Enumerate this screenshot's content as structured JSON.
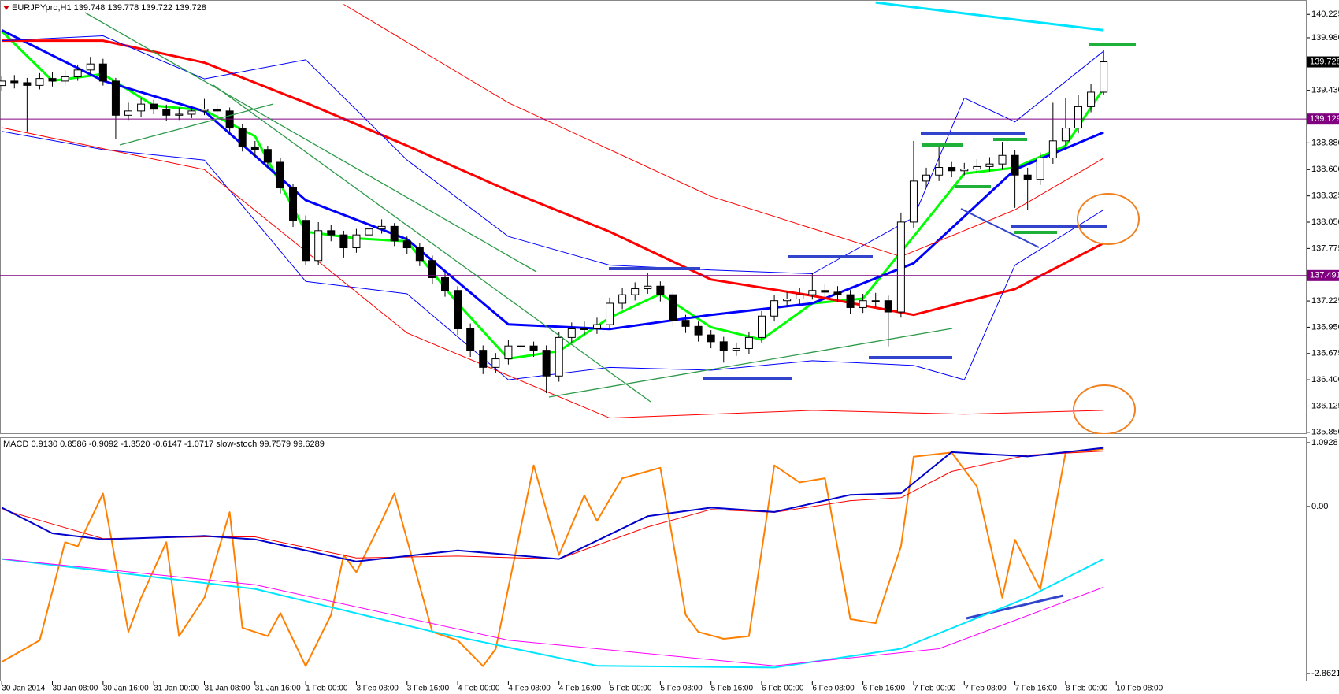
{
  "chart_data": [
    {
      "type": "candlestick",
      "title": "EURJPYpro,H1  139.748 139.778 139.722 139.728",
      "time_labels": [
        "30 Jan 2014",
        "30 Jan 08:00",
        "30 Jan 16:00",
        "31 Jan 00:00",
        "31 Jan 08:00",
        "31 Jan 16:00",
        "1 Feb 00:00",
        "3 Feb 08:00",
        "3 Feb 16:00",
        "4 Feb 00:00",
        "4 Feb 08:00",
        "4 Feb 16:00",
        "5 Feb 00:00",
        "5 Feb 08:00",
        "5 Feb 16:00",
        "6 Feb 00:00",
        "6 Feb 08:00",
        "6 Feb 16:00",
        "7 Feb 00:00",
        "7 Feb 08:00",
        "7 Feb 16:00",
        "8 Feb 00:00",
        "10 Feb 08:00"
      ],
      "open": [
        139.48,
        139.527,
        139.51,
        139.482,
        139.554,
        139.527,
        139.572,
        139.643,
        139.706,
        139.527,
        139.169,
        139.214,
        139.286,
        139.232,
        139.169,
        139.18,
        139.214,
        139.232,
        139.214,
        139.035,
        138.838,
        138.811,
        138.677,
        138.409,
        138.069,
        137.648,
        137.961,
        137.917,
        137.782,
        137.917,
        137.979,
        138.006,
        137.854,
        137.782,
        137.648,
        137.469,
        137.335,
        136.933,
        136.709,
        136.53,
        136.619,
        136.754,
        136.754,
        136.709,
        136.44,
        136.843,
        136.933,
        136.933,
        136.977,
        137.201,
        137.29,
        137.353,
        137.38,
        137.29,
        137.022,
        136.959,
        136.87,
        136.798,
        136.709,
        136.727,
        136.843,
        137.067,
        137.228,
        137.246,
        137.29,
        137.335,
        137.317,
        137.29,
        137.156,
        137.228,
        137.228,
        137.11,
        138.051,
        138.48,
        138.543,
        138.623,
        138.588,
        138.606,
        138.632,
        138.659,
        138.749,
        138.543,
        138.498,
        138.722,
        138.901,
        139.035,
        139.259,
        139.411
      ],
      "high": [
        139.58,
        139.59,
        139.56,
        139.61,
        139.62,
        139.64,
        139.7,
        139.78,
        139.76,
        139.56,
        139.3,
        139.35,
        139.33,
        139.28,
        139.25,
        139.27,
        139.34,
        139.29,
        139.25,
        139.08,
        138.9,
        138.85,
        138.72,
        138.45,
        138.12,
        138.05,
        138.02,
        137.96,
        137.98,
        138.05,
        138.08,
        138.04,
        137.9,
        137.83,
        137.7,
        137.52,
        137.38,
        136.99,
        136.76,
        136.68,
        136.82,
        136.83,
        136.8,
        136.76,
        136.9,
        137.0,
        137.01,
        137.05,
        137.26,
        137.36,
        137.42,
        137.52,
        137.43,
        137.33,
        137.08,
        137.01,
        136.92,
        136.85,
        136.79,
        136.9,
        137.12,
        137.29,
        137.32,
        137.36,
        137.52,
        137.4,
        137.38,
        137.34,
        137.3,
        137.31,
        137.28,
        138.15,
        138.9,
        138.62,
        138.87,
        138.68,
        138.67,
        138.71,
        138.73,
        138.89,
        138.8,
        138.62,
        138.78,
        139.3,
        139.35,
        139.38,
        139.5,
        139.85
      ],
      "low": [
        139.42,
        139.45,
        139.0,
        139.44,
        139.47,
        139.48,
        139.53,
        139.6,
        139.48,
        138.92,
        139.12,
        139.15,
        139.18,
        139.11,
        139.12,
        139.14,
        139.17,
        139.15,
        138.98,
        138.79,
        138.74,
        138.62,
        138.35,
        138.0,
        137.6,
        137.6,
        137.85,
        137.68,
        137.73,
        137.88,
        137.93,
        137.8,
        137.72,
        137.59,
        137.4,
        137.27,
        136.87,
        136.64,
        136.46,
        136.47,
        136.56,
        136.69,
        136.64,
        136.26,
        136.38,
        136.78,
        136.87,
        136.88,
        136.92,
        137.14,
        137.23,
        137.3,
        137.22,
        136.96,
        136.89,
        136.8,
        136.73,
        136.58,
        136.65,
        136.67,
        136.79,
        137.01,
        137.17,
        137.19,
        137.24,
        137.25,
        137.22,
        137.09,
        137.1,
        137.16,
        136.75,
        137.05,
        137.99,
        138.42,
        138.48,
        138.52,
        138.54,
        138.56,
        138.58,
        138.6,
        138.2,
        138.18,
        138.44,
        138.66,
        138.85,
        138.98,
        139.2,
        139.38
      ],
      "close": [
        139.527,
        139.51,
        139.482,
        139.554,
        139.527,
        139.572,
        139.643,
        139.706,
        139.527,
        139.169,
        139.214,
        139.286,
        139.232,
        139.169,
        139.18,
        139.214,
        139.232,
        139.214,
        139.035,
        138.838,
        138.811,
        138.677,
        138.409,
        138.069,
        137.648,
        137.961,
        137.917,
        137.782,
        137.917,
        137.979,
        138.006,
        137.854,
        137.782,
        137.648,
        137.469,
        137.335,
        136.933,
        136.709,
        136.53,
        136.619,
        136.754,
        136.754,
        136.709,
        136.44,
        136.843,
        136.933,
        136.933,
        136.977,
        137.201,
        137.29,
        137.353,
        137.38,
        137.29,
        137.022,
        136.959,
        136.87,
        136.798,
        136.709,
        136.727,
        136.843,
        137.067,
        137.228,
        137.246,
        137.29,
        137.335,
        137.317,
        137.29,
        137.156,
        137.228,
        137.228,
        137.11,
        138.051,
        138.48,
        138.543,
        138.623,
        138.588,
        138.606,
        138.632,
        138.659,
        138.749,
        138.543,
        138.498,
        138.722,
        138.901,
        139.035,
        139.259,
        139.411,
        139.728
      ],
      "ylim": [
        135.832,
        140.359
      ],
      "yticks": [
        140.225,
        {
          "value": 139.98,
          "label": "139.980"
        },
        {
          "value": 139.43,
          "label": "139.430"
        },
        {
          "value": 138.88,
          "label": "138.880"
        },
        {
          "value": 138.6,
          "label": "138.600"
        },
        138.325,
        {
          "value": 138.05,
          "label": "138.050"
        },
        137.775,
        137.225,
        {
          "value": 136.95,
          "label": "136.950"
        },
        136.675,
        {
          "value": 136.4,
          "label": "136.400"
        },
        136.125,
        {
          "value": 135.85,
          "label": "135.850"
        }
      ],
      "hlines": [
        139.129,
        137.491
      ],
      "hline_color": "#800080",
      "last_price": 139.728,
      "bull_color": "#ffffff",
      "bear_color": "#000000",
      "series": [
        {
          "color": "#00ff00",
          "width": 3,
          "x": [
            0,
            4,
            8,
            12,
            16,
            20,
            24,
            28,
            32,
            36,
            40,
            44,
            48,
            52,
            56,
            60,
            64,
            68,
            72,
            76,
            80,
            84,
            87
          ],
          "values": [
            140.05,
            139.53,
            139.6,
            139.27,
            139.22,
            138.95,
            137.95,
            137.88,
            137.85,
            137.2,
            136.62,
            136.7,
            137.05,
            137.3,
            136.95,
            136.82,
            137.2,
            137.25,
            137.9,
            138.56,
            138.62,
            138.85,
            139.45
          ]
        },
        {
          "color": "#0000ff",
          "width": 3,
          "x": [
            0,
            8,
            16,
            24,
            32,
            40,
            48,
            56,
            64,
            72,
            80,
            87
          ],
          "values": [
            140.06,
            139.53,
            139.21,
            138.28,
            137.87,
            136.98,
            136.93,
            137.08,
            137.2,
            137.62,
            138.6,
            138.99
          ]
        },
        {
          "color": "#ff0000",
          "width": 3,
          "x": [
            0,
            8,
            16,
            24,
            32,
            40,
            48,
            56,
            64,
            72,
            80,
            87
          ],
          "values": [
            139.95,
            139.95,
            139.72,
            139.3,
            138.85,
            138.38,
            137.95,
            137.45,
            137.28,
            137.08,
            137.35,
            137.83
          ]
        },
        {
          "color": "#00e5ff",
          "width": 3,
          "x": [
            69,
            80,
            87
          ],
          "values": [
            140.35,
            140.17,
            140.06
          ]
        },
        {
          "color": "#0000ff",
          "width": 1,
          "x": [
            0,
            8,
            16,
            24,
            32,
            40,
            48,
            56,
            64,
            72,
            76,
            80,
            87
          ],
          "values": [
            139.95,
            140.0,
            139.55,
            139.75,
            138.7,
            137.9,
            137.6,
            137.55,
            137.51,
            138.1,
            139.35,
            139.1,
            139.84
          ]
        },
        {
          "color": "#0000ff",
          "width": 1,
          "x": [
            0,
            8,
            16,
            24,
            32,
            40,
            48,
            56,
            64,
            72,
            76,
            80,
            87
          ],
          "values": [
            139.0,
            138.81,
            138.7,
            137.43,
            137.3,
            136.4,
            136.53,
            136.5,
            136.6,
            136.55,
            136.4,
            137.6,
            138.18
          ]
        },
        {
          "color": "#ff0000",
          "width": 1,
          "x": [
            27,
            40,
            56,
            71,
            80,
            87
          ],
          "values": [
            140.33,
            139.3,
            138.32,
            137.69,
            138.18,
            138.72
          ]
        },
        {
          "color": "#ff0000",
          "width": 1,
          "x": [
            0,
            16,
            32,
            48,
            64,
            76,
            87
          ],
          "values": [
            139.04,
            138.6,
            136.89,
            136.0,
            136.08,
            136.04,
            136.08
          ]
        }
      ]
    },
    {
      "type": "line",
      "title": "MACD 0.9130 0.8586 -0.9092 -1.3520 -0.6147 -1.0717  slow-stoch 99.7579 99.6289",
      "ylim": [
        -2.8621,
        1.0928
      ],
      "yticks": [
        1.0928,
        {
          "value": 0,
          "label": "0.00"
        },
        -2.8621
      ],
      "y2lim": [
        0,
        100
      ],
      "series": [
        {
          "color": "#ff8000",
          "width": 2,
          "axis": "y2",
          "x": [
            0,
            3,
            5,
            6,
            8,
            10,
            11,
            13,
            14,
            16,
            18,
            19,
            21,
            22,
            24,
            26,
            27,
            28,
            30,
            31,
            34,
            36,
            38,
            39,
            42,
            44,
            46,
            47,
            49,
            52,
            54,
            55,
            57,
            59,
            61,
            63,
            65,
            67,
            69,
            71,
            72,
            75,
            77,
            79,
            80,
            82,
            84,
            87
          ],
          "values": [
            3.8,
            13.5,
            57.7,
            55.8,
            79.6,
            17.3,
            32.7,
            57.7,
            15.4,
            32.7,
            71.2,
            19.2,
            15.4,
            25.8,
            1.9,
            25.0,
            51.9,
            44.2,
            67.3,
            79.6,
            17.3,
            13.5,
            1.9,
            9.6,
            92.3,
            51.9,
            78.8,
            67.3,
            86.5,
            91.2,
            25.0,
            17.3,
            14.2,
            15.4,
            92.3,
            84.6,
            86.5,
            23.1,
            21.2,
            55.8,
            96.2,
            98.1,
            82.7,
            32.7,
            58.8,
            36.5,
            98.1,
            99.6
          ]
        },
        {
          "color": "#00e5ff",
          "width": 2,
          "x": [
            0,
            20,
            34,
            47,
            61,
            71,
            81,
            87
          ],
          "values": [
            -0.899,
            -1.412,
            -2.144,
            -2.73,
            -2.76,
            -2.437,
            -1.559,
            -0.899
          ]
        },
        {
          "color": "#ff00ff",
          "width": 1,
          "x": [
            0,
            20,
            40,
            61,
            74,
            87
          ],
          "values": [
            -0.899,
            -1.339,
            -2.291,
            -2.73,
            -2.437,
            -1.383
          ]
        },
        {
          "color": "#ff0000",
          "width": 1,
          "x": [
            0,
            4,
            8,
            16,
            20,
            28,
            36,
            44,
            51,
            56,
            61,
            67,
            71,
            75,
            81,
            87
          ],
          "values": [
            -0.05,
            -0.3,
            -0.55,
            -0.52,
            -0.52,
            -0.88,
            -0.85,
            -0.9,
            -0.35,
            -0.05,
            -0.1,
            0.1,
            0.15,
            0.6,
            0.88,
            0.95
          ]
        },
        {
          "color": "#0000cc",
          "width": 2,
          "x": [
            0,
            4,
            8,
            16,
            20,
            28,
            36,
            44,
            51,
            56,
            61,
            67,
            71,
            75,
            81,
            87
          ],
          "values": [
            -0.02,
            -0.46,
            -0.563,
            -0.504,
            -0.563,
            -0.943,
            -0.753,
            -0.899,
            -0.167,
            -0.02,
            -0.094,
            0.199,
            0.228,
            0.932,
            0.858,
            1.005
          ]
        }
      ]
    }
  ]
}
